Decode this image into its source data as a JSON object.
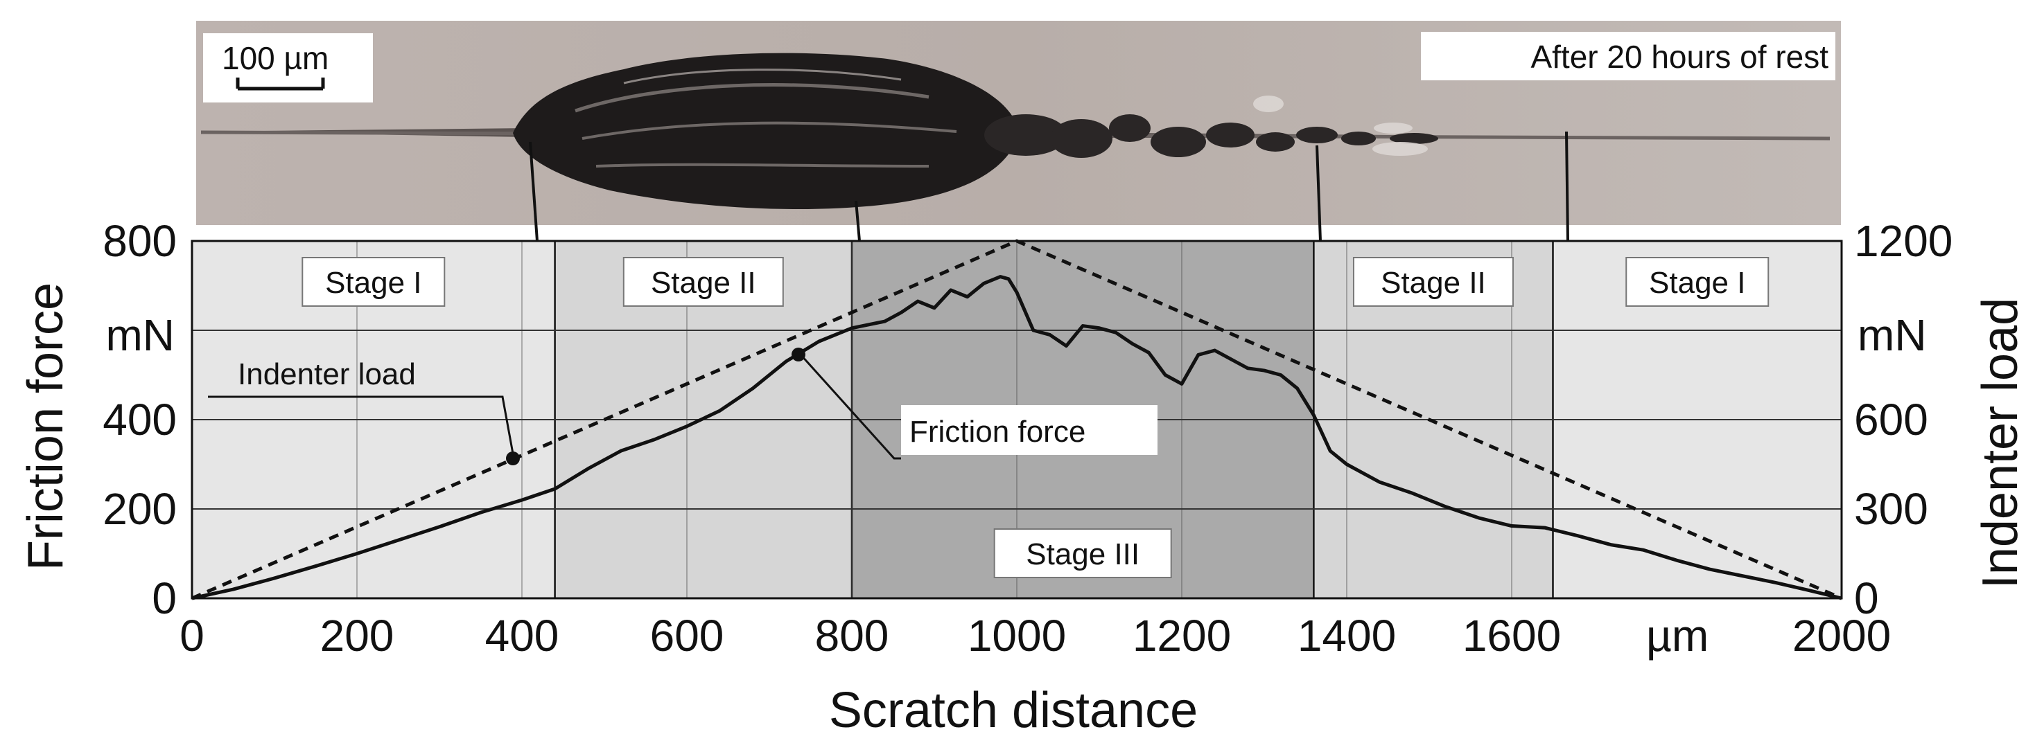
{
  "micrograph": {
    "scale_bar_label": "100 µm",
    "caption": "After 20 hours of rest"
  },
  "chart_data": {
    "type": "line",
    "xlabel": "Scratch distance",
    "x_unit_label": "µm",
    "ylabel_left": "Friction force",
    "ylabel_left_unit": "mN",
    "ylabel_right": "Indenter load",
    "ylabel_right_unit": "mN",
    "xlim": [
      0,
      2000
    ],
    "ylim_left": [
      0,
      800
    ],
    "ylim_right": [
      0,
      1200
    ],
    "x_ticks": [
      0,
      200,
      400,
      600,
      800,
      1000,
      1200,
      1400,
      1600,
      2000
    ],
    "y_left_ticks": [
      0,
      200,
      400,
      800
    ],
    "y_right_ticks": [
      0,
      300,
      600,
      1200
    ],
    "grid": true,
    "regions": [
      {
        "label": "Stage I",
        "x_start": 0,
        "x_end": 440,
        "shade": "#e6e6e6"
      },
      {
        "label": "Stage II",
        "x_start": 440,
        "x_end": 800,
        "shade": "#d6d6d6"
      },
      {
        "label": "Stage III",
        "x_start": 800,
        "x_end": 1360,
        "shade": "#aaaaaa"
      },
      {
        "label": "Stage II",
        "x_start": 1360,
        "x_end": 1650,
        "shade": "#d6d6d6"
      },
      {
        "label": "Stage I",
        "x_start": 1650,
        "x_end": 2000,
        "shade": "#e6e6e6"
      }
    ],
    "series": [
      {
        "name": "Indenter load",
        "axis": "right",
        "style": "dashed",
        "x": [
          0,
          1000,
          2000
        ],
        "y": [
          0,
          1200,
          0
        ]
      },
      {
        "name": "Friction force",
        "axis": "left",
        "style": "solid",
        "x": [
          0,
          50,
          100,
          150,
          200,
          250,
          300,
          350,
          400,
          440,
          480,
          520,
          560,
          600,
          640,
          680,
          720,
          760,
          800,
          840,
          860,
          880,
          900,
          920,
          940,
          960,
          980,
          990,
          1000,
          1020,
          1040,
          1060,
          1080,
          1100,
          1120,
          1140,
          1160,
          1180,
          1200,
          1220,
          1240,
          1260,
          1280,
          1300,
          1320,
          1340,
          1360,
          1380,
          1400,
          1440,
          1480,
          1520,
          1560,
          1600,
          1640,
          1680,
          1720,
          1760,
          1800,
          1840,
          1880,
          1920,
          1960,
          2000
        ],
        "y": [
          0,
          20,
          45,
          72,
          100,
          130,
          160,
          192,
          220,
          245,
          290,
          330,
          355,
          385,
          420,
          470,
          530,
          575,
          605,
          620,
          640,
          665,
          650,
          690,
          675,
          705,
          720,
          715,
          685,
          600,
          590,
          565,
          610,
          605,
          595,
          570,
          550,
          500,
          480,
          545,
          555,
          535,
          515,
          510,
          500,
          470,
          410,
          330,
          300,
          260,
          235,
          205,
          180,
          162,
          158,
          140,
          120,
          108,
          85,
          65,
          50,
          35,
          18,
          0
        ]
      }
    ],
    "annotations": [
      "Indenter load",
      "Friction force"
    ]
  }
}
